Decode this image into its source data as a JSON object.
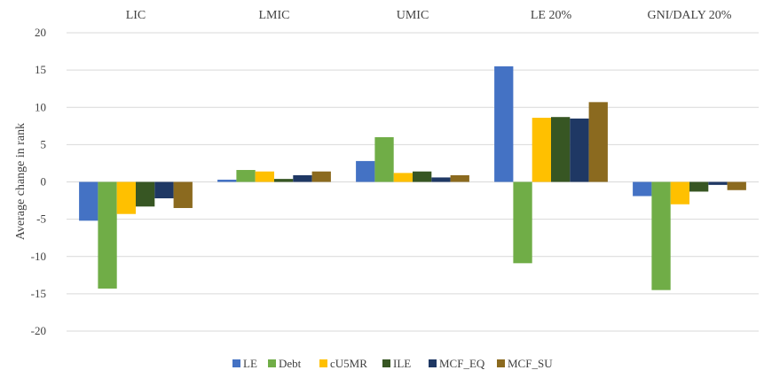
{
  "chart_data": {
    "type": "bar",
    "categories": [
      "LIC",
      "LMIC",
      "UMIC",
      "LE 20%",
      "GNI/DALY 20%"
    ],
    "series": [
      {
        "name": "LE",
        "color": "#4472C4",
        "values": [
          -5.2,
          0.3,
          2.8,
          15.5,
          -1.9
        ]
      },
      {
        "name": "Debt",
        "color": "#70AD47",
        "values": [
          -14.3,
          1.6,
          6.0,
          -10.9,
          -14.5
        ]
      },
      {
        "name": "cU5MR",
        "color": "#FFC000",
        "values": [
          -4.3,
          1.4,
          1.2,
          8.6,
          -3.0
        ]
      },
      {
        "name": "ILE",
        "color": "#375623",
        "values": [
          -3.3,
          0.4,
          1.4,
          8.7,
          -1.3
        ]
      },
      {
        "name": "MCF_EQ",
        "color": "#1F3864",
        "values": [
          -2.2,
          0.9,
          0.6,
          8.5,
          -0.4
        ]
      },
      {
        "name": "MCF_SU",
        "color": "#8B6A1F",
        "values": [
          -3.5,
          1.4,
          0.9,
          10.7,
          -1.1
        ]
      }
    ],
    "xlabel": "",
    "ylabel": "Average change in rank",
    "ylim": [
      -20,
      20
    ],
    "yticks": [
      20,
      15,
      10,
      5,
      0,
      -5,
      -10,
      -15,
      -20
    ],
    "grid": true,
    "legend_position": "bottom"
  }
}
